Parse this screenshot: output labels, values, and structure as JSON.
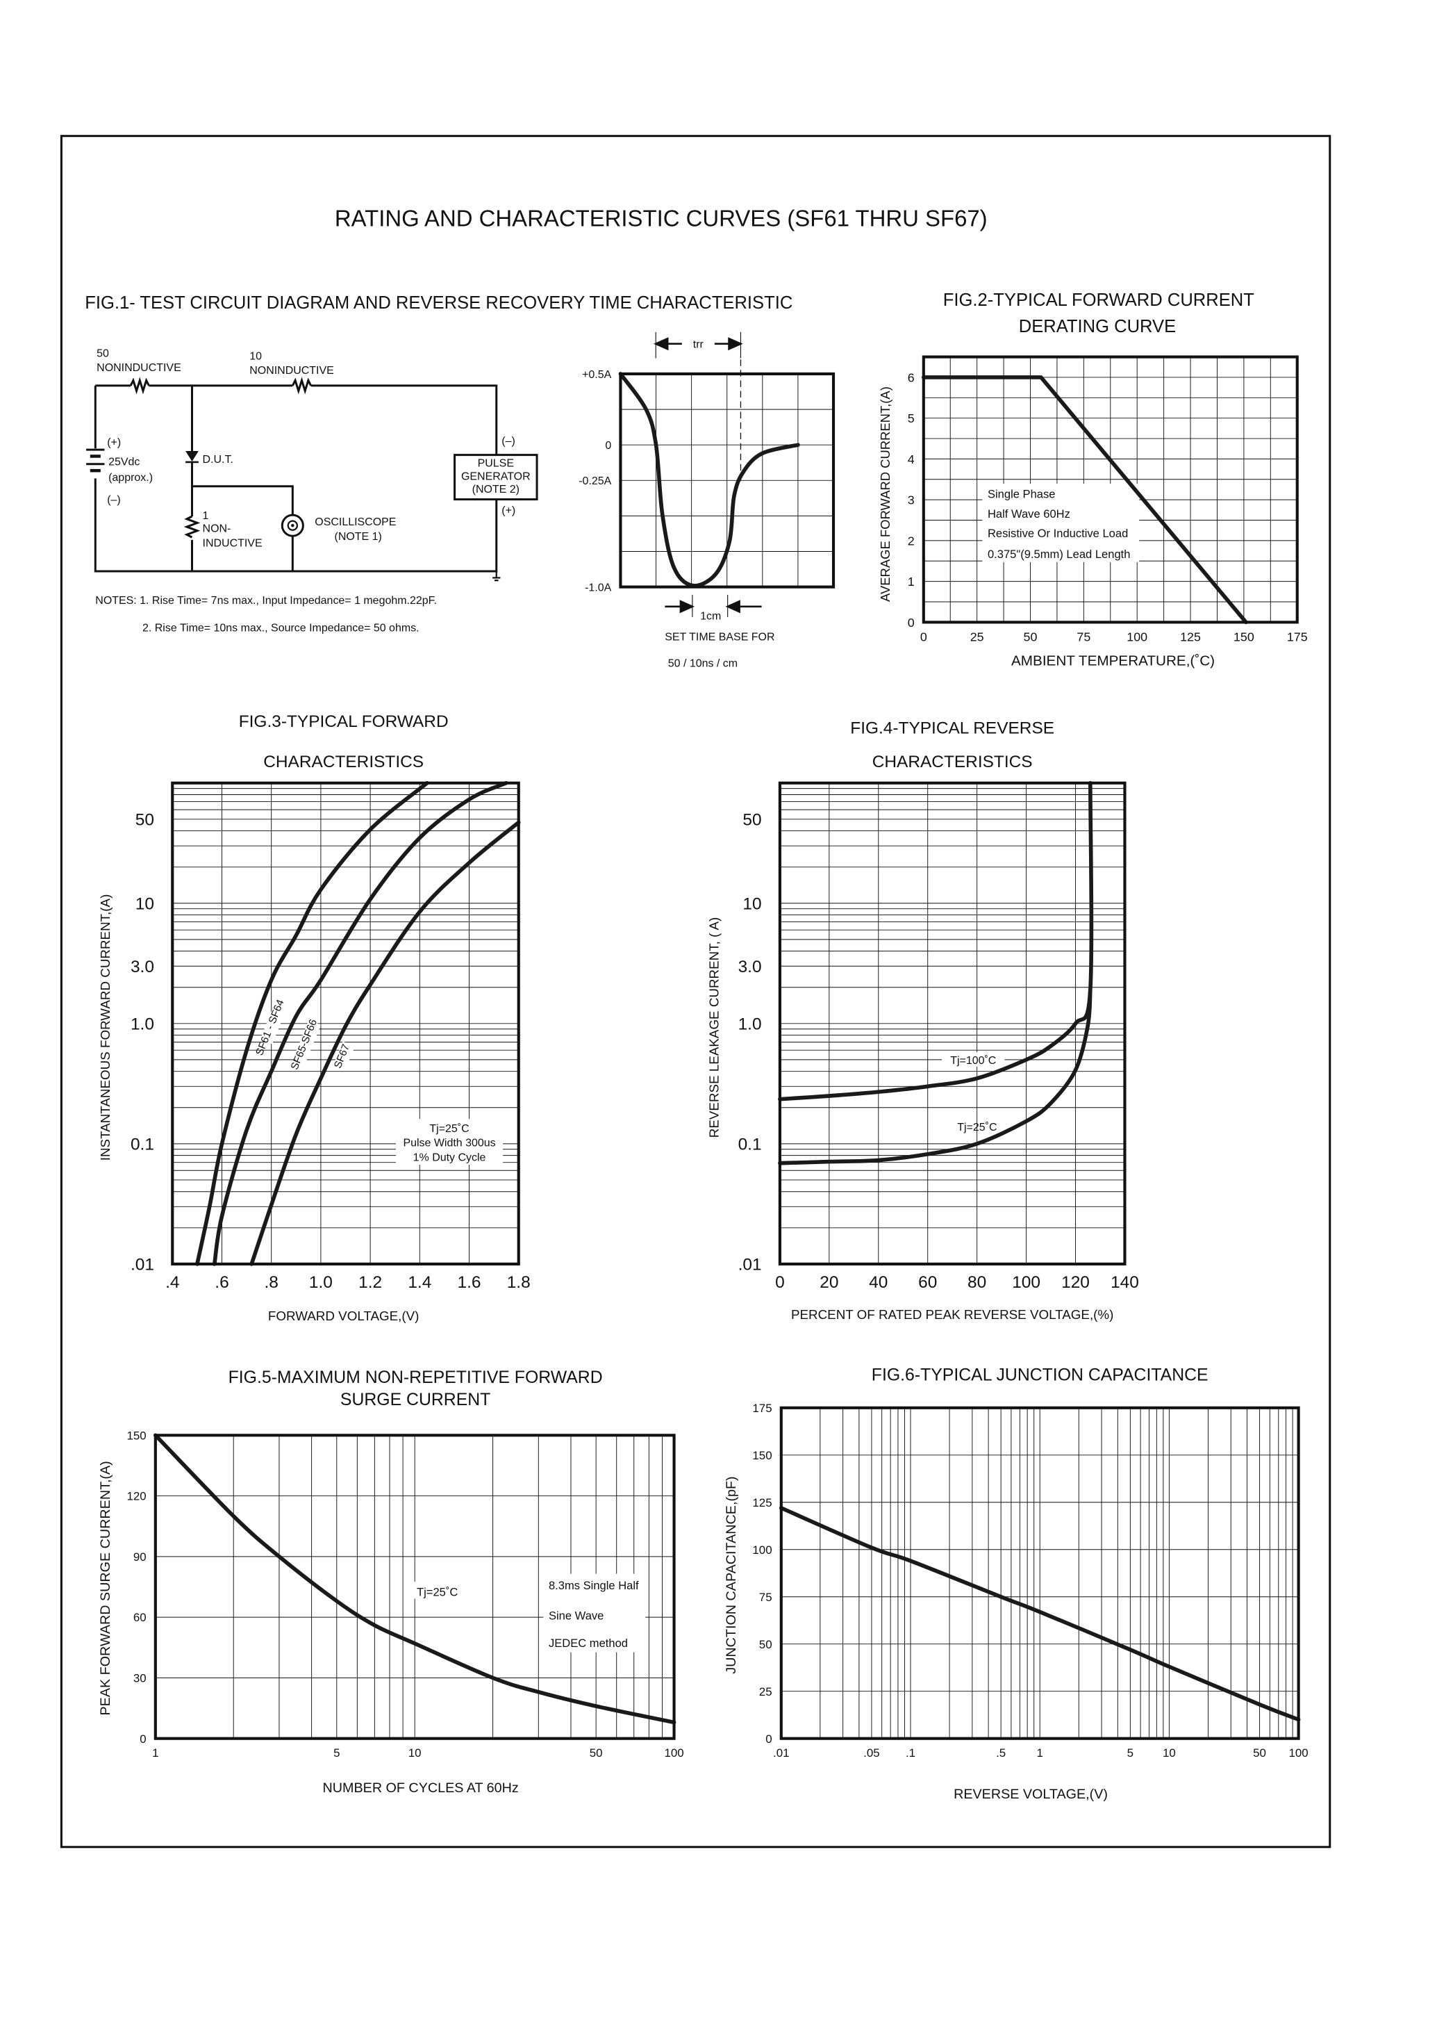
{
  "page": {
    "title": "RATING AND CHARACTERISTIC CURVES (SF61 THRU SF67)"
  },
  "fig1": {
    "title": "FIG.1- TEST CIRCUIT DIAGRAM AND REVERSE RECOVERY TIME CHARACTERISTIC",
    "r1_value": "50",
    "r1_type": "NONINDUCTIVE",
    "r2_value": "10",
    "r2_type": "NONINDUCTIVE",
    "battery_plus": "(+)",
    "battery_voltage": "25Vdc",
    "battery_approx": "(approx.)",
    "battery_minus": "(–)",
    "dut": "D.U.T.",
    "r3_value": "1",
    "r3_type_1": "NON-",
    "r3_type_2": "INDUCTIVE",
    "scope_1": "OSCILLISCOPE",
    "scope_2": "(NOTE 1)",
    "pulse_1": "PULSE",
    "pulse_2": "GENERATOR",
    "pulse_3": "(NOTE 2)",
    "pulse_minus": "(–)",
    "pulse_plus": "(+)",
    "note_1": "NOTES: 1. Rise Time= 7ns max., Input Impedance= 1 megohm.22pF.",
    "note_2": "2. Rise Time= 10ns max., Source Impedance= 50 ohms.",
    "trr": "trr",
    "one_cm": "1cm",
    "timebase_1": "SET TIME BASE FOR",
    "timebase_2": "50 / 10ns / cm"
  },
  "chart_data": [
    {
      "id": "fig1-waveform",
      "type": "line",
      "title": "",
      "xlabel": "",
      "ylabel": "",
      "xlim": [
        0,
        6
      ],
      "ylim": [
        -1.0,
        0.5
      ],
      "x_scale": "linear",
      "y_scale": "linear",
      "grid": true,
      "x_ticks": [],
      "y_ticks": [
        {
          "value": 0.5,
          "label": "+0.5A"
        },
        {
          "value": 0,
          "label": "0"
        },
        {
          "value": -0.25,
          "label": "-0.25A"
        },
        {
          "value": -1.0,
          "label": "-1.0A"
        }
      ],
      "series": [
        {
          "points": [
            [
              0,
              0.5
            ],
            [
              0.72,
              0.25
            ],
            [
              1.0,
              0
            ],
            [
              1.18,
              -0.49
            ],
            [
              1.5,
              -0.86
            ],
            [
              2.03,
              -0.99
            ],
            [
              2.68,
              -0.91
            ],
            [
              3.07,
              -0.68
            ],
            [
              3.2,
              -0.36
            ],
            [
              3.46,
              -0.19
            ],
            [
              3.99,
              -0.06
            ],
            [
              5.0,
              0
            ]
          ],
          "smooth": true
        }
      ],
      "annotations": []
    },
    {
      "id": "fig2",
      "type": "line",
      "title": "FIG.2-TYPICAL FORWARD CURRENT",
      "subtitle": "DERATING CURVE",
      "xlabel": "AMBIENT TEMPERATURE,(˚C)",
      "ylabel": "AVERAGE FORWARD CURRENT,(A)",
      "xlim": [
        0,
        175
      ],
      "ylim": [
        0,
        6.5
      ],
      "x_scale": "linear",
      "y_scale": "linear",
      "grid": true,
      "x_ticks": [
        {
          "value": 0,
          "label": "0"
        },
        {
          "value": 25,
          "label": "25"
        },
        {
          "value": 50,
          "label": "50"
        },
        {
          "value": 75,
          "label": "75"
        },
        {
          "value": 100,
          "label": "100"
        },
        {
          "value": 125,
          "label": "125"
        },
        {
          "value": 150,
          "label": "150"
        },
        {
          "value": 175,
          "label": "175"
        }
      ],
      "y_ticks": [
        {
          "value": 0,
          "label": "0"
        },
        {
          "value": 1,
          "label": "1"
        },
        {
          "value": 2,
          "label": "2"
        },
        {
          "value": 3,
          "label": "3"
        },
        {
          "value": 4,
          "label": "4"
        },
        {
          "value": 5,
          "label": "5"
        },
        {
          "value": 6,
          "label": "6"
        }
      ],
      "series": [
        {
          "points": [
            [
              0,
              6
            ],
            [
              55,
              6
            ],
            [
              151,
              0
            ]
          ],
          "smooth": false
        }
      ],
      "annotations": [
        "Single Phase",
        "Half Wave 60Hz",
        "Resistive Or Inductive Load",
        "0.375\"(9.5mm) Lead Length"
      ]
    },
    {
      "id": "fig3",
      "type": "line",
      "title": "FIG.3-TYPICAL FORWARD",
      "subtitle": "CHARACTERISTICS",
      "xlabel": "FORWARD VOLTAGE,(V)",
      "ylabel": "INSTANTANEOUS FORWARD CURRENT,(A)",
      "xlim": [
        0.4,
        1.8
      ],
      "ylim": [
        0.01,
        100
      ],
      "x_scale": "linear",
      "y_scale": "log",
      "grid": true,
      "x_ticks": [
        {
          "value": 0.4,
          "label": ".4"
        },
        {
          "value": 0.6,
          "label": ".6"
        },
        {
          "value": 0.8,
          "label": ".8"
        },
        {
          "value": 1.0,
          "label": "1.0"
        },
        {
          "value": 1.2,
          "label": "1.2"
        },
        {
          "value": 1.4,
          "label": "1.4"
        },
        {
          "value": 1.6,
          "label": "1.6"
        },
        {
          "value": 1.8,
          "label": "1.8"
        }
      ],
      "y_ticks": [
        {
          "value": 0.01,
          "label": ".01"
        },
        {
          "value": 0.1,
          "label": "0.1"
        },
        {
          "value": 1,
          "label": "1.0"
        },
        {
          "value": 3,
          "label": "3.0"
        },
        {
          "value": 10,
          "label": "10"
        },
        {
          "value": 50,
          "label": "50"
        }
      ],
      "series": [
        {
          "name": "SF61 - SF64",
          "points": [
            [
              0.5,
              0.01
            ],
            [
              0.55,
              0.03
            ],
            [
              0.6,
              0.1
            ],
            [
              0.7,
              0.6
            ],
            [
              0.8,
              2.3
            ],
            [
              0.9,
              5.4
            ],
            [
              1.0,
              13
            ],
            [
              1.2,
              41
            ],
            [
              1.43,
              100
            ]
          ],
          "smooth": true
        },
        {
          "name": "SF65-SF66",
          "points": [
            [
              0.57,
              0.01
            ],
            [
              0.6,
              0.025
            ],
            [
              0.7,
              0.13
            ],
            [
              0.8,
              0.4
            ],
            [
              0.9,
              1.15
            ],
            [
              1.0,
              2.3
            ],
            [
              1.2,
              10.8
            ],
            [
              1.4,
              35
            ],
            [
              1.6,
              73
            ],
            [
              1.75,
              100
            ]
          ],
          "smooth": true
        },
        {
          "name": "SF67",
          "points": [
            [
              0.72,
              0.01
            ],
            [
              0.8,
              0.031
            ],
            [
              0.9,
              0.12
            ],
            [
              1.0,
              0.35
            ],
            [
              1.1,
              0.95
            ],
            [
              1.2,
              2.1
            ],
            [
              1.4,
              8.5
            ],
            [
              1.6,
              21.7
            ],
            [
              1.8,
              47
            ]
          ],
          "smooth": true
        }
      ],
      "annotations": [
        "Tj=25˚C",
        "Pulse Width 300us",
        "1% Duty Cycle"
      ]
    },
    {
      "id": "fig4",
      "type": "line",
      "title": "FIG.4-TYPICAL REVERSE",
      "subtitle": "CHARACTERISTICS",
      "xlabel": "PERCENT OF RATED PEAK REVERSE VOLTAGE,(%)",
      "ylabel": "REVERSE LEAKAGE CURRENT, (  A)",
      "xlim": [
        0,
        140
      ],
      "ylim": [
        0.01,
        100
      ],
      "x_scale": "linear",
      "y_scale": "log",
      "grid": true,
      "x_ticks": [
        {
          "value": 0,
          "label": "0"
        },
        {
          "value": 20,
          "label": "20"
        },
        {
          "value": 40,
          "label": "40"
        },
        {
          "value": 60,
          "label": "60"
        },
        {
          "value": 80,
          "label": "80"
        },
        {
          "value": 100,
          "label": "100"
        },
        {
          "value": 120,
          "label": "120"
        },
        {
          "value": 140,
          "label": "140"
        }
      ],
      "y_ticks": [
        {
          "value": 0.01,
          "label": ".01"
        },
        {
          "value": 0.1,
          "label": "0.1"
        },
        {
          "value": 1,
          "label": "1.0"
        },
        {
          "value": 3,
          "label": "3.0"
        },
        {
          "value": 10,
          "label": "10"
        },
        {
          "value": 50,
          "label": "50"
        }
      ],
      "series": [
        {
          "name": "Tj=100˚C",
          "points": [
            [
              0,
              0.235
            ],
            [
              20,
              0.25
            ],
            [
              40,
              0.27
            ],
            [
              60,
              0.3
            ],
            [
              80,
              0.35
            ],
            [
              100,
              0.5
            ],
            [
              110,
              0.65
            ],
            [
              120,
              1.0
            ],
            [
              126,
              1.9
            ],
            [
              126,
              100
            ]
          ],
          "smooth": true
        },
        {
          "name": "Tj=25˚C",
          "points": [
            [
              0,
              0.069
            ],
            [
              20,
              0.071
            ],
            [
              40,
              0.073
            ],
            [
              60,
              0.082
            ],
            [
              80,
              0.1
            ],
            [
              100,
              0.154
            ],
            [
              110,
              0.218
            ],
            [
              120,
              0.41
            ],
            [
              125,
              0.96
            ],
            [
              126,
              1.9
            ]
          ],
          "smooth": true
        }
      ],
      "annotations": []
    },
    {
      "id": "fig5",
      "type": "line",
      "title": "FIG.5-MAXIMUM NON-REPETITIVE FORWARD",
      "subtitle": "SURGE CURRENT",
      "xlabel": "NUMBER OF CYCLES AT 60Hz",
      "ylabel": "PEAK FORWARD SURGE CURRENT,(A)",
      "xlim": [
        1,
        100
      ],
      "ylim": [
        0,
        150
      ],
      "x_scale": "log",
      "y_scale": "linear",
      "grid": true,
      "x_ticks": [
        {
          "value": 1,
          "label": "1"
        },
        {
          "value": 5,
          "label": "5"
        },
        {
          "value": 10,
          "label": "10"
        },
        {
          "value": 50,
          "label": "50"
        },
        {
          "value": 100,
          "label": "100"
        }
      ],
      "y_ticks": [
        {
          "value": 0,
          "label": "0"
        },
        {
          "value": 30,
          "label": "30"
        },
        {
          "value": 60,
          "label": "60"
        },
        {
          "value": 90,
          "label": "90"
        },
        {
          "value": 120,
          "label": "120"
        },
        {
          "value": 150,
          "label": "150"
        }
      ],
      "series": [
        {
          "points": [
            [
              1,
              150
            ],
            [
              2,
              110
            ],
            [
              3,
              90
            ],
            [
              5,
              68
            ],
            [
              7,
              56
            ],
            [
              10,
              47
            ],
            [
              20,
              30
            ],
            [
              30,
              23
            ],
            [
              50,
              16
            ],
            [
              100,
              8
            ]
          ],
          "smooth": true
        }
      ],
      "annotations": [
        "Tj=25˚C",
        "8.3ms Single Half",
        "Sine Wave",
        "JEDEC method"
      ]
    },
    {
      "id": "fig6",
      "type": "line",
      "title": "FIG.6-TYPICAL JUNCTION CAPACITANCE",
      "xlabel": "REVERSE VOLTAGE,(V)",
      "ylabel": "JUNCTION CAPACITANCE,(pF)",
      "xlim": [
        0.01,
        100
      ],
      "ylim": [
        0,
        175
      ],
      "x_scale": "log",
      "y_scale": "linear",
      "grid": true,
      "x_ticks": [
        {
          "value": 0.01,
          "label": ".01"
        },
        {
          "value": 0.05,
          "label": ".05"
        },
        {
          "value": 0.1,
          "label": ".1"
        },
        {
          "value": 0.5,
          "label": ".5"
        },
        {
          "value": 1,
          "label": "1"
        },
        {
          "value": 5,
          "label": "5"
        },
        {
          "value": 10,
          "label": "10"
        },
        {
          "value": 50,
          "label": "50"
        },
        {
          "value": 100,
          "label": "100"
        }
      ],
      "y_ticks": [
        {
          "value": 0,
          "label": "0"
        },
        {
          "value": 25,
          "label": "25"
        },
        {
          "value": 50,
          "label": "50"
        },
        {
          "value": 75,
          "label": "75"
        },
        {
          "value": 100,
          "label": "100"
        },
        {
          "value": 125,
          "label": "125"
        },
        {
          "value": 150,
          "label": "150"
        },
        {
          "value": 175,
          "label": "175"
        }
      ],
      "series": [
        {
          "points": [
            [
              0.01,
              122
            ],
            [
              0.05,
              101
            ],
            [
              0.1,
              94
            ],
            [
              0.5,
              75
            ],
            [
              1,
              67
            ],
            [
              5,
              47
            ],
            [
              10,
              38
            ],
            [
              50,
              18
            ],
            [
              100,
              10
            ]
          ],
          "smooth": true
        }
      ],
      "annotations": []
    }
  ]
}
